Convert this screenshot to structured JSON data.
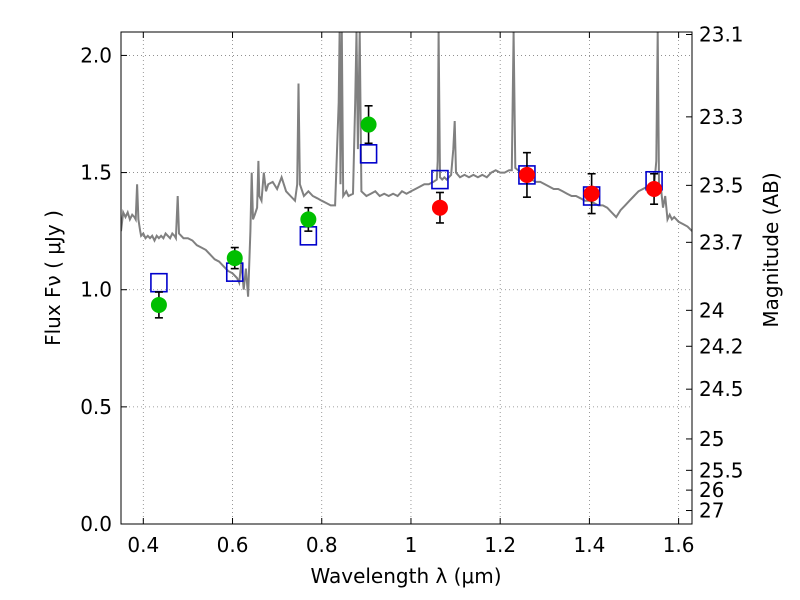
{
  "chart_data": {
    "type": "scatter",
    "xlabel": "Wavelength  λ (μm)",
    "ylabel": "Flux  Fν  ( μJy )",
    "ylabel_right": "Magnitude (AB)",
    "xlim": [
      0.35,
      1.63
    ],
    "ylim": [
      0.0,
      2.1
    ],
    "grid": true,
    "x_ticks": [
      {
        "v": 0.4,
        "label": "0.4"
      },
      {
        "v": 0.6,
        "label": "0.6"
      },
      {
        "v": 0.8,
        "label": "0.8"
      },
      {
        "v": 1.0,
        "label": "1"
      },
      {
        "v": 1.2,
        "label": "1.2"
      },
      {
        "v": 1.4,
        "label": "1.4"
      },
      {
        "v": 1.6,
        "label": "1.6"
      }
    ],
    "y_ticks": [
      {
        "v": 0.0,
        "label": "0.0"
      },
      {
        "v": 0.5,
        "label": "0.5"
      },
      {
        "v": 1.0,
        "label": "1.0"
      },
      {
        "v": 1.5,
        "label": "1.5"
      },
      {
        "v": 2.0,
        "label": "2.0"
      }
    ],
    "right_ticks": [
      {
        "mag": 23.1,
        "label": "23.1"
      },
      {
        "mag": 23.3,
        "label": "23.3"
      },
      {
        "mag": 23.5,
        "label": "23.5"
      },
      {
        "mag": 23.7,
        "label": "23.7"
      },
      {
        "mag": 24.0,
        "label": "24"
      },
      {
        "mag": 24.2,
        "label": "24.2"
      },
      {
        "mag": 24.5,
        "label": "24.5"
      },
      {
        "mag": 25.0,
        "label": "25"
      },
      {
        "mag": 25.5,
        "label": "25.5"
      },
      {
        "mag": 26.0,
        "label": "26"
      },
      {
        "mag": 27.0,
        "label": "27"
      }
    ],
    "colors": {
      "model": "#808080",
      "green": "#00bf00",
      "red": "#ff0000",
      "square": "#0000cc",
      "grid": "#808080"
    },
    "series": [
      {
        "marker": "circle-green",
        "points": [
          {
            "x": 0.435,
            "y": 0.935,
            "err": 0.055
          },
          {
            "x": 0.605,
            "y": 1.135,
            "err": 0.045
          },
          {
            "x": 0.77,
            "y": 1.3,
            "err": 0.05
          },
          {
            "x": 0.905,
            "y": 1.705,
            "err": 0.08
          }
        ]
      },
      {
        "marker": "circle-red",
        "points": [
          {
            "x": 1.065,
            "y": 1.35,
            "err": 0.065
          },
          {
            "x": 1.26,
            "y": 1.49,
            "err": 0.095
          },
          {
            "x": 1.405,
            "y": 1.41,
            "err": 0.085
          },
          {
            "x": 1.545,
            "y": 1.43,
            "err": 0.065
          }
        ]
      },
      {
        "marker": "square-blue",
        "points": [
          {
            "x": 0.435,
            "y": 1.03
          },
          {
            "x": 0.605,
            "y": 1.075
          },
          {
            "x": 0.77,
            "y": 1.23
          },
          {
            "x": 0.905,
            "y": 1.58
          },
          {
            "x": 1.065,
            "y": 1.47
          },
          {
            "x": 1.26,
            "y": 1.49
          },
          {
            "x": 1.405,
            "y": 1.4
          },
          {
            "x": 1.545,
            "y": 1.465
          }
        ]
      }
    ],
    "model_spectrum": [
      [
        0.35,
        1.25
      ],
      [
        0.355,
        1.33
      ],
      [
        0.36,
        1.31
      ],
      [
        0.365,
        1.33
      ],
      [
        0.37,
        1.3
      ],
      [
        0.375,
        1.32
      ],
      [
        0.38,
        1.31
      ],
      [
        0.383,
        1.3
      ],
      [
        0.386,
        1.45
      ],
      [
        0.389,
        1.3
      ],
      [
        0.393,
        1.25
      ],
      [
        0.395,
        1.23
      ],
      [
        0.4,
        1.24
      ],
      [
        0.405,
        1.22
      ],
      [
        0.41,
        1.23
      ],
      [
        0.415,
        1.22
      ],
      [
        0.42,
        1.23
      ],
      [
        0.425,
        1.21
      ],
      [
        0.43,
        1.23
      ],
      [
        0.435,
        1.22
      ],
      [
        0.44,
        1.23
      ],
      [
        0.445,
        1.22
      ],
      [
        0.45,
        1.24
      ],
      [
        0.455,
        1.23
      ],
      [
        0.46,
        1.22
      ],
      [
        0.465,
        1.24
      ],
      [
        0.47,
        1.23
      ],
      [
        0.473,
        1.22
      ],
      [
        0.477,
        1.4
      ],
      [
        0.48,
        1.24
      ],
      [
        0.485,
        1.23
      ],
      [
        0.49,
        1.22
      ],
      [
        0.5,
        1.22
      ],
      [
        0.51,
        1.21
      ],
      [
        0.52,
        1.19
      ],
      [
        0.53,
        1.18
      ],
      [
        0.54,
        1.17
      ],
      [
        0.55,
        1.15
      ],
      [
        0.56,
        1.13
      ],
      [
        0.57,
        1.12
      ],
      [
        0.58,
        1.1
      ],
      [
        0.59,
        1.08
      ],
      [
        0.6,
        1.07
      ],
      [
        0.61,
        1.05
      ],
      [
        0.615,
        1.03
      ],
      [
        0.62,
        1.12
      ],
      [
        0.625,
        1.0
      ],
      [
        0.63,
        1.09
      ],
      [
        0.635,
        0.97
      ],
      [
        0.64,
        1.25
      ],
      [
        0.643,
        1.5
      ],
      [
        0.646,
        1.3
      ],
      [
        0.65,
        1.32
      ],
      [
        0.655,
        1.35
      ],
      [
        0.658,
        1.55
      ],
      [
        0.66,
        1.4
      ],
      [
        0.665,
        1.38
      ],
      [
        0.67,
        1.5
      ],
      [
        0.675,
        1.42
      ],
      [
        0.68,
        1.45
      ],
      [
        0.69,
        1.46
      ],
      [
        0.7,
        1.43
      ],
      [
        0.71,
        1.48
      ],
      [
        0.72,
        1.42
      ],
      [
        0.73,
        1.4
      ],
      [
        0.74,
        1.38
      ],
      [
        0.745,
        1.45
      ],
      [
        0.748,
        1.88
      ],
      [
        0.751,
        1.45
      ],
      [
        0.76,
        1.4
      ],
      [
        0.77,
        1.42
      ],
      [
        0.78,
        1.4
      ],
      [
        0.79,
        1.39
      ],
      [
        0.8,
        1.38
      ],
      [
        0.81,
        1.37
      ],
      [
        0.82,
        1.36
      ],
      [
        0.83,
        1.36
      ],
      [
        0.838,
        1.8
      ],
      [
        0.84,
        2.1
      ],
      [
        0.842,
        1.45
      ],
      [
        0.845,
        2.1
      ],
      [
        0.848,
        1.4
      ],
      [
        0.855,
        1.42
      ],
      [
        0.86,
        1.4
      ],
      [
        0.87,
        1.41
      ],
      [
        0.875,
        1.8
      ],
      [
        0.878,
        2.1
      ],
      [
        0.881,
        1.6
      ],
      [
        0.885,
        2.1
      ],
      [
        0.889,
        1.42
      ],
      [
        0.9,
        1.4
      ],
      [
        0.91,
        1.41
      ],
      [
        0.92,
        1.42
      ],
      [
        0.93,
        1.4
      ],
      [
        0.94,
        1.41
      ],
      [
        0.95,
        1.4
      ],
      [
        0.96,
        1.41
      ],
      [
        0.97,
        1.4
      ],
      [
        0.98,
        1.42
      ],
      [
        0.99,
        1.41
      ],
      [
        1.0,
        1.42
      ],
      [
        1.01,
        1.43
      ],
      [
        1.02,
        1.44
      ],
      [
        1.03,
        1.45
      ],
      [
        1.04,
        1.45
      ],
      [
        1.05,
        1.46
      ],
      [
        1.058,
        1.47
      ],
      [
        1.06,
        1.55
      ],
      [
        1.062,
        2.1
      ],
      [
        1.065,
        1.48
      ],
      [
        1.07,
        1.47
      ],
      [
        1.075,
        1.48
      ],
      [
        1.08,
        1.47
      ],
      [
        1.09,
        1.49
      ],
      [
        1.095,
        1.6
      ],
      [
        1.098,
        1.72
      ],
      [
        1.101,
        1.5
      ],
      [
        1.11,
        1.48
      ],
      [
        1.12,
        1.49
      ],
      [
        1.13,
        1.48
      ],
      [
        1.14,
        1.49
      ],
      [
        1.15,
        1.48
      ],
      [
        1.16,
        1.49
      ],
      [
        1.17,
        1.48
      ],
      [
        1.18,
        1.5
      ],
      [
        1.19,
        1.51
      ],
      [
        1.2,
        1.5
      ],
      [
        1.21,
        1.5
      ],
      [
        1.22,
        1.51
      ],
      [
        1.226,
        1.51
      ],
      [
        1.23,
        2.1
      ],
      [
        1.234,
        1.52
      ],
      [
        1.24,
        1.51
      ],
      [
        1.25,
        1.5
      ],
      [
        1.26,
        1.49
      ],
      [
        1.27,
        1.47
      ],
      [
        1.28,
        1.46
      ],
      [
        1.29,
        1.46
      ],
      [
        1.3,
        1.45
      ],
      [
        1.31,
        1.44
      ],
      [
        1.32,
        1.43
      ],
      [
        1.33,
        1.43
      ],
      [
        1.34,
        1.42
      ],
      [
        1.35,
        1.41
      ],
      [
        1.36,
        1.4
      ],
      [
        1.37,
        1.4
      ],
      [
        1.38,
        1.39
      ],
      [
        1.39,
        1.38
      ],
      [
        1.4,
        1.38
      ],
      [
        1.41,
        1.37
      ],
      [
        1.42,
        1.36
      ],
      [
        1.43,
        1.36
      ],
      [
        1.44,
        1.35
      ],
      [
        1.45,
        1.33
      ],
      [
        1.46,
        1.31
      ],
      [
        1.47,
        1.34
      ],
      [
        1.48,
        1.36
      ],
      [
        1.49,
        1.38
      ],
      [
        1.5,
        1.4
      ],
      [
        1.51,
        1.42
      ],
      [
        1.52,
        1.43
      ],
      [
        1.53,
        1.44
      ],
      [
        1.54,
        1.43
      ],
      [
        1.545,
        1.44
      ],
      [
        1.55,
        1.55
      ],
      [
        1.553,
        2.1
      ],
      [
        1.556,
        1.45
      ],
      [
        1.56,
        1.44
      ],
      [
        1.565,
        1.35
      ],
      [
        1.57,
        1.4
      ],
      [
        1.575,
        1.3
      ],
      [
        1.58,
        1.32
      ],
      [
        1.585,
        1.3
      ],
      [
        1.59,
        1.31
      ],
      [
        1.6,
        1.29
      ],
      [
        1.61,
        1.28
      ],
      [
        1.62,
        1.27
      ],
      [
        1.63,
        1.25
      ]
    ]
  }
}
